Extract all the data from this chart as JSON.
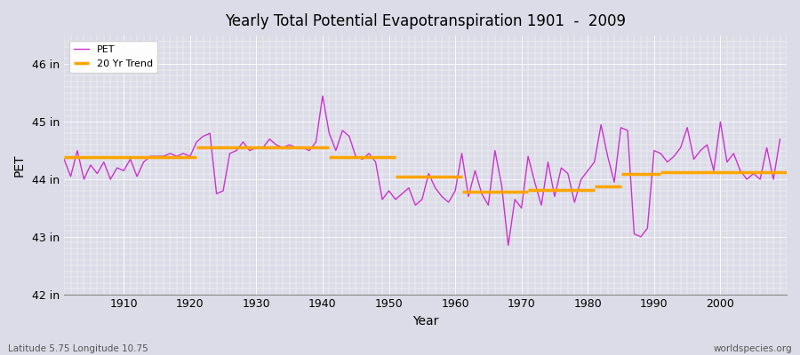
{
  "title": "Yearly Total Potential Evapotranspiration 1901  -  2009",
  "xlabel": "Year",
  "ylabel": "PET",
  "subtitle_left": "Latitude 5.75 Longitude 10.75",
  "subtitle_right": "worldspecies.org",
  "pet_color": "#CC33CC",
  "trend_color": "#FFA500",
  "background_color": "#DCDCE8",
  "ylim": [
    42,
    46.5
  ],
  "yticks": [
    42,
    43,
    44,
    45,
    46
  ],
  "ytick_labels": [
    "42 in",
    "43 in",
    "44 in",
    "45 in",
    "46 in"
  ],
  "xlim": [
    1901,
    2010
  ],
  "xticks": [
    1910,
    1920,
    1930,
    1940,
    1950,
    1960,
    1970,
    1980,
    1990,
    2000
  ],
  "years": [
    1901,
    1902,
    1903,
    1904,
    1905,
    1906,
    1907,
    1908,
    1909,
    1910,
    1911,
    1912,
    1913,
    1914,
    1915,
    1916,
    1917,
    1918,
    1919,
    1920,
    1921,
    1922,
    1923,
    1924,
    1925,
    1926,
    1927,
    1928,
    1929,
    1930,
    1931,
    1932,
    1933,
    1934,
    1935,
    1936,
    1937,
    1938,
    1939,
    1940,
    1941,
    1942,
    1943,
    1944,
    1945,
    1946,
    1947,
    1948,
    1949,
    1950,
    1951,
    1952,
    1953,
    1954,
    1955,
    1956,
    1957,
    1958,
    1959,
    1960,
    1961,
    1962,
    1963,
    1964,
    1965,
    1966,
    1967,
    1968,
    1969,
    1970,
    1971,
    1972,
    1973,
    1974,
    1975,
    1976,
    1977,
    1978,
    1979,
    1980,
    1981,
    1982,
    1983,
    1984,
    1985,
    1986,
    1987,
    1988,
    1989,
    1990,
    1991,
    1992,
    1993,
    1994,
    1995,
    1996,
    1997,
    1998,
    1999,
    2000,
    2001,
    2002,
    2003,
    2004,
    2005,
    2006,
    2007,
    2008,
    2009
  ],
  "pet_values": [
    44.35,
    44.05,
    44.5,
    44.0,
    44.25,
    44.1,
    44.3,
    44.0,
    44.2,
    44.15,
    44.35,
    44.05,
    44.3,
    44.4,
    44.4,
    44.4,
    44.45,
    44.4,
    44.45,
    44.4,
    44.65,
    44.75,
    44.8,
    43.75,
    43.8,
    44.45,
    44.5,
    44.65,
    44.5,
    44.55,
    44.55,
    44.7,
    44.6,
    44.55,
    44.6,
    44.55,
    44.55,
    44.5,
    44.65,
    45.45,
    44.8,
    44.5,
    44.85,
    44.75,
    44.4,
    44.35,
    44.45,
    44.3,
    43.65,
    43.8,
    43.65,
    43.75,
    43.85,
    43.55,
    43.65,
    44.1,
    43.85,
    43.7,
    43.6,
    43.8,
    44.45,
    43.7,
    44.15,
    43.75,
    43.55,
    44.5,
    43.9,
    42.85,
    43.65,
    43.5,
    44.4,
    43.95,
    43.55,
    44.3,
    43.7,
    44.2,
    44.1,
    43.6,
    44.0,
    44.15,
    44.3,
    44.95,
    44.4,
    43.95,
    44.9,
    44.85,
    43.05,
    43.0,
    43.15,
    44.5,
    44.45,
    44.3,
    44.4,
    44.55,
    44.9,
    44.35,
    44.5,
    44.6,
    44.15,
    45.0,
    44.3,
    44.45,
    44.15,
    44.0,
    44.1,
    44.0,
    44.55,
    44.0,
    44.7
  ],
  "trend_segments": [
    {
      "x_start": 1901,
      "x_end": 1921,
      "y": 44.38
    },
    {
      "x_start": 1921,
      "x_end": 1941,
      "y": 44.55
    },
    {
      "x_start": 1941,
      "x_end": 1951,
      "y": 44.38
    },
    {
      "x_start": 1951,
      "x_end": 1961,
      "y": 44.05
    },
    {
      "x_start": 1961,
      "x_end": 1971,
      "y": 43.78
    },
    {
      "x_start": 1971,
      "x_end": 1981,
      "y": 43.82
    },
    {
      "x_start": 1981,
      "x_end": 1985,
      "y": 43.88
    },
    {
      "x_start": 1985,
      "x_end": 1991,
      "y": 44.1
    },
    {
      "x_start": 1991,
      "x_end": 2010,
      "y": 44.13
    }
  ]
}
